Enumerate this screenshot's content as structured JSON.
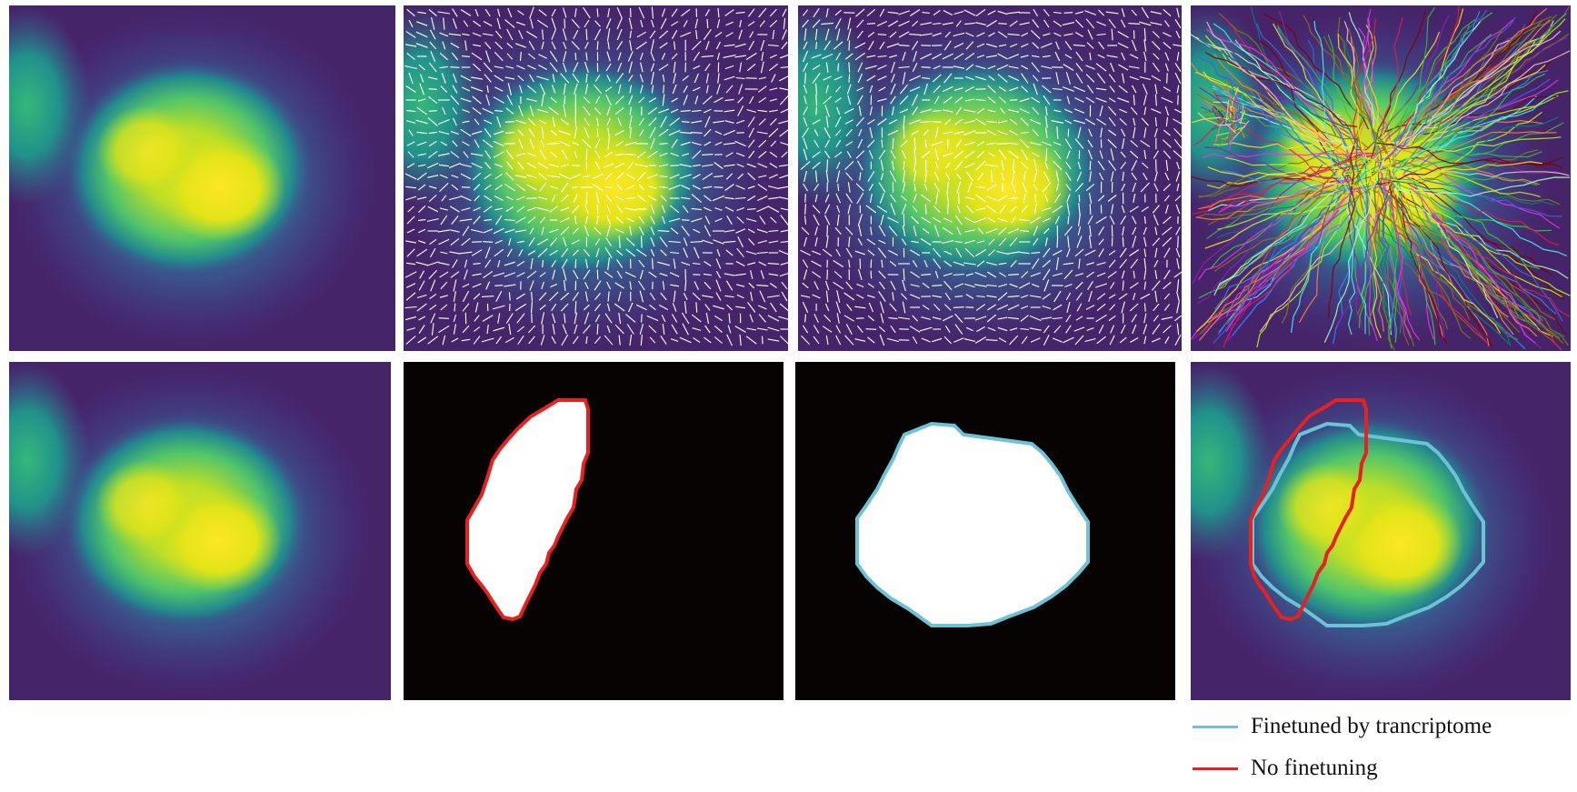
{
  "figure": {
    "panels": [
      {
        "name": "expression-heatmap"
      },
      {
        "name": "vector-field-pretrained"
      },
      {
        "name": "vector-field-finetuned"
      },
      {
        "name": "streamline-trajectories"
      },
      {
        "name": "expression-heatmap-copy"
      },
      {
        "name": "mask-no-finetuning"
      },
      {
        "name": "mask-finetuned"
      },
      {
        "name": "overlay-comparison"
      }
    ],
    "colors": {
      "finetuned": "#6cc3d6",
      "no_finetuning": "#e8201f",
      "mask_background": "#070302",
      "mask_foreground": "#ffffff",
      "arrow": "#ffffff"
    }
  },
  "legend": {
    "items": [
      {
        "label": "Finetuned by trancriptome",
        "color": "#6cc3d6"
      },
      {
        "label": "No finetuning",
        "color": "#e8201f"
      }
    ]
  }
}
